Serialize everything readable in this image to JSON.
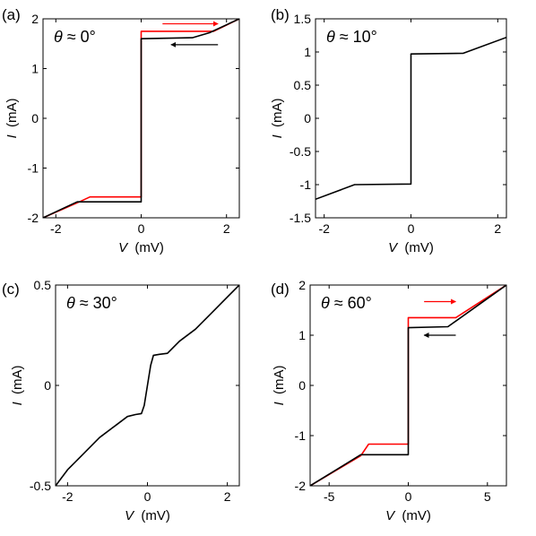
{
  "chart_data": [
    {
      "type": "line",
      "panel_label": "(a)",
      "annotation": "θ ≈ 0°",
      "xlabel": "V",
      "xunit": "(mV)",
      "ylabel": "I",
      "yunit": "(mA)",
      "xlim": [
        -2.3,
        2.3
      ],
      "ylim": [
        -2,
        2
      ],
      "xticks": [
        -2,
        0,
        2
      ],
      "xtick_labels": [
        "-2",
        "0",
        "2"
      ],
      "yticks": [
        -2,
        -1,
        0,
        1,
        2
      ],
      "ytick_labels": [
        "-2",
        "-1",
        "0",
        "1",
        "2"
      ],
      "series": [
        {
          "color": "#ff0000",
          "x": [
            -2.3,
            -1.5,
            -1.2,
            0.0,
            0.0,
            1.7,
            2.3
          ],
          "y": [
            -2.0,
            -1.7,
            -1.58,
            -1.58,
            1.75,
            1.75,
            2.0
          ]
        },
        {
          "color": "#000000",
          "x": [
            -2.3,
            -1.5,
            0.0,
            0.0,
            1.2,
            1.6,
            2.3
          ],
          "y": [
            -2.0,
            -1.68,
            -1.68,
            1.6,
            1.62,
            1.72,
            2.0
          ]
        }
      ],
      "arrows": [
        {
          "color": "#ff0000",
          "x1": 0.5,
          "x2": 1.8,
          "y": 1.9
        },
        {
          "color": "#000000",
          "x1": 1.8,
          "x2": 0.7,
          "y": 1.48
        }
      ]
    },
    {
      "type": "line",
      "panel_label": "(b)",
      "annotation": "θ ≈ 10°",
      "xlabel": "V",
      "xunit": "(mV)",
      "ylabel": "I",
      "yunit": "(mA)",
      "xlim": [
        -2.2,
        2.2
      ],
      "ylim": [
        -1.5,
        1.5
      ],
      "xticks": [
        -2,
        0,
        2
      ],
      "xtick_labels": [
        "-2",
        "0",
        "2"
      ],
      "yticks": [
        -1.5,
        -1,
        -0.5,
        0,
        0.5,
        1,
        1.5
      ],
      "ytick_labels": [
        "-1.5",
        "-1",
        "-0.5",
        "0",
        "0.5",
        "1",
        "1.5"
      ],
      "series": [
        {
          "color": "#000000",
          "x": [
            -2.2,
            -1.3,
            0.0,
            0.0,
            1.2,
            2.2
          ],
          "y": [
            -1.22,
            -1.0,
            -0.99,
            0.97,
            0.98,
            1.22
          ]
        }
      ],
      "arrows": []
    },
    {
      "type": "line",
      "panel_label": "(c)",
      "annotation": "θ ≈ 30°",
      "xlabel": "V",
      "xunit": "(mV)",
      "ylabel": "I",
      "yunit": "(mA)",
      "xlim": [
        -2.3,
        2.3
      ],
      "ylim": [
        -0.5,
        0.5
      ],
      "xticks": [
        -2,
        0,
        2
      ],
      "xtick_labels": [
        "-2",
        "0",
        "2"
      ],
      "yticks": [
        -0.5,
        0,
        0.5
      ],
      "ytick_labels": [
        "-0.5",
        "0",
        "0.5"
      ],
      "series": [
        {
          "color": "#000000",
          "x": [
            -2.3,
            -2.0,
            -1.6,
            -1.2,
            -0.8,
            -0.5,
            -0.3,
            -0.15,
            -0.08,
            0.0,
            0.08,
            0.15,
            0.3,
            0.5,
            0.8,
            1.2,
            1.6,
            2.0,
            2.3
          ],
          "y": [
            -0.5,
            -0.42,
            -0.34,
            -0.26,
            -0.2,
            -0.155,
            -0.145,
            -0.14,
            -0.1,
            0.0,
            0.1,
            0.15,
            0.155,
            0.16,
            0.22,
            0.28,
            0.36,
            0.44,
            0.5
          ]
        }
      ],
      "arrows": []
    },
    {
      "type": "line",
      "panel_label": "(d)",
      "annotation": "θ ≈ 60°",
      "xlabel": "V",
      "xunit": "(mV)",
      "ylabel": "I",
      "yunit": "(mA)",
      "xlim": [
        -6.2,
        6.2
      ],
      "ylim": [
        -2,
        2
      ],
      "xticks": [
        -5,
        0,
        5
      ],
      "xtick_labels": [
        "-5",
        "0",
        "5"
      ],
      "yticks": [
        -2,
        -1,
        0,
        1,
        2
      ],
      "ytick_labels": [
        "-2",
        "-1",
        "0",
        "1",
        "2"
      ],
      "series": [
        {
          "color": "#ff0000",
          "x": [
            -6.2,
            -3.0,
            -2.5,
            0.0,
            0.0,
            3.0,
            6.2
          ],
          "y": [
            -2.0,
            -1.4,
            -1.17,
            -1.17,
            1.35,
            1.35,
            2.0
          ]
        },
        {
          "color": "#000000",
          "x": [
            -6.2,
            -3.0,
            0.0,
            0.0,
            2.5,
            6.2
          ],
          "y": [
            -2.0,
            -1.38,
            -1.38,
            1.15,
            1.17,
            2.0
          ]
        }
      ],
      "arrows": [
        {
          "color": "#ff0000",
          "x1": 1.0,
          "x2": 3.0,
          "y": 1.67
        },
        {
          "color": "#000000",
          "x1": 3.0,
          "x2": 1.0,
          "y": 1.0
        }
      ]
    }
  ]
}
